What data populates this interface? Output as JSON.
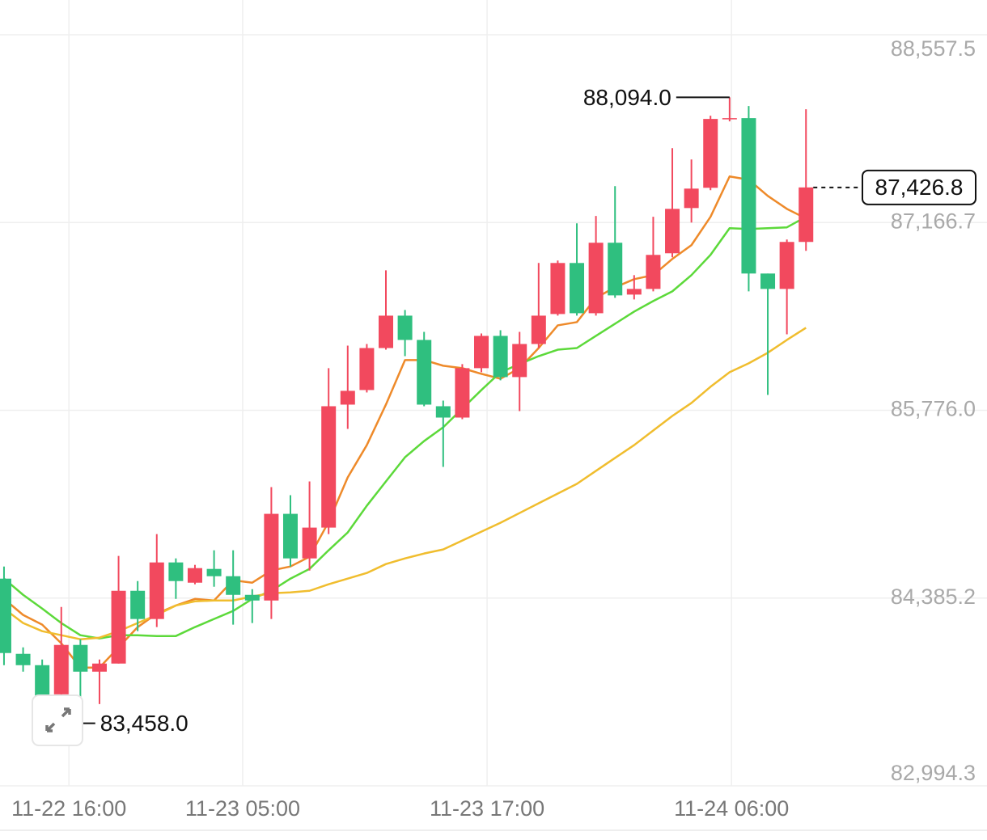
{
  "chart_data": {
    "type": "candlestick",
    "up_color": "#f2495e",
    "down_color": "#2fbf7f",
    "open": [
      84529,
      83972,
      83888,
      83672,
      84038,
      83840,
      83900,
      84439,
      84230,
      84649,
      84499,
      84601,
      84547,
      84409,
      84367,
      85009,
      84679,
      84907,
      85818,
      85926,
      86237,
      86477,
      86297,
      85806,
      85722,
      86088,
      86327,
      86022,
      86267,
      86489,
      86867,
      86495,
      87017,
      86633,
      86675,
      86939,
      87274,
      87424,
      87934,
      87940,
      86789,
      86675,
      87023
    ],
    "high": [
      84619,
      84020,
      83930,
      84319,
      84080,
      83930,
      84697,
      84511,
      84859,
      84679,
      84631,
      84739,
      84739,
      84451,
      85207,
      85147,
      85249,
      86088,
      86255,
      86267,
      86813,
      86519,
      86357,
      85848,
      86118,
      86345,
      86369,
      86357,
      86867,
      86885,
      87161,
      87215,
      87436,
      86777,
      87209,
      87718,
      87634,
      87958,
      88094.0,
      88030,
      86789,
      87041,
      88006
    ],
    "low": [
      83888,
      83840,
      83540,
      83458.0,
      83648,
      83600,
      83900,
      84140,
      84170,
      84379,
      84487,
      84469,
      84188,
      84200,
      84230,
      84619,
      84589,
      84859,
      85638,
      85908,
      86225,
      86177,
      85806,
      85357,
      85710,
      86058,
      85998,
      85770,
      86237,
      86477,
      86477,
      86477,
      86609,
      86597,
      86657,
      86909,
      87167,
      87406,
      87916,
      86657,
      85890,
      86339,
      86957
    ],
    "close": [
      83978,
      83888,
      83660,
      84038,
      83840,
      83900,
      84439,
      84230,
      84649,
      84511,
      84607,
      84547,
      84409,
      84367,
      85009,
      84679,
      84907,
      85806,
      85920,
      86237,
      86477,
      86297,
      85818,
      85722,
      86088,
      86327,
      86022,
      86267,
      86477,
      86867,
      86495,
      87017,
      86627,
      86675,
      86927,
      87268,
      87418,
      87934,
      87940,
      86789,
      86675,
      87023,
      87426.8
    ],
    "series": [
      {
        "color": "#ee8a2a",
        "values": [
          84379,
          84260,
          84188,
          84050,
          83870,
          83870,
          84020,
          84170,
          84270,
          84330,
          84379,
          84367,
          84517,
          84499,
          84589,
          84619,
          84691,
          84949,
          85279,
          85518,
          85818,
          86148,
          86148,
          86106,
          86088,
          86046,
          86010,
          86088,
          86237,
          86405,
          86429,
          86609,
          86687,
          86747,
          86777,
          86897,
          86999,
          87209,
          87508,
          87484,
          87364,
          87268,
          87197
        ]
      },
      {
        "color": "#5cd93a",
        "values": [
          84529,
          84409,
          84307,
          84200,
          84110,
          84086,
          84110,
          84110,
          84104,
          84104,
          84170,
          84230,
          84290,
          84379,
          84439,
          84529,
          84601,
          84739,
          84871,
          85069,
          85249,
          85428,
          85548,
          85650,
          85788,
          85926,
          86058,
          86118,
          86177,
          86225,
          86237,
          86327,
          86417,
          86507,
          86585,
          86657,
          86777,
          86927,
          87125,
          87119,
          87125,
          87131,
          87209
        ]
      },
      {
        "color": "#f0bd2e",
        "values": [
          84307,
          84200,
          84140,
          84110,
          84080,
          84092,
          84140,
          84200,
          84260,
          84330,
          84361,
          84367,
          84367,
          84397,
          84421,
          84427,
          84439,
          84487,
          84529,
          84571,
          84637,
          84679,
          84715,
          84745,
          84811,
          84877,
          84943,
          85015,
          85087,
          85159,
          85231,
          85327,
          85423,
          85518,
          85626,
          85734,
          85830,
          85950,
          86058,
          86124,
          86202,
          86297,
          86387
        ]
      }
    ],
    "xlim": [
      -0.21,
      51.48
    ],
    "xticks": [
      {
        "value": 3.4,
        "label": "11-22 16:00"
      },
      {
        "value": 12.5,
        "label": "11-23 05:00"
      },
      {
        "value": 25.3,
        "label": "11-23 17:00"
      },
      {
        "value": 38.1,
        "label": "11-24 06:00"
      }
    ],
    "ylim": [
      82994.3,
      88557.5
    ],
    "yticks": [
      {
        "value": 82994.3,
        "label": "82,994.3"
      },
      {
        "value": 84385.2,
        "label": "84,385.2"
      },
      {
        "value": 85776.0,
        "label": "85,776.0"
      },
      {
        "value": 87166.7,
        "label": "87,166.7"
      },
      {
        "value": 88557.5,
        "label": "88,557.5"
      }
    ],
    "grid": true,
    "annotations": {
      "high": {
        "value": 88094.0,
        "label": "88,094.0"
      },
      "low": {
        "value": 83458.0,
        "label": "83,458.0"
      },
      "last": {
        "value": 87426.8,
        "label": "87,426.8"
      }
    }
  }
}
